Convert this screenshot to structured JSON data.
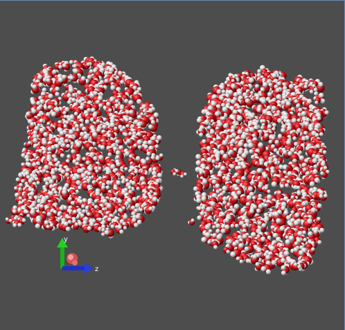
{
  "viewport": {
    "background": "#4d4d4d",
    "border_color": "#6a8bb4"
  },
  "molecule_colors": {
    "oxygen": "#c0141c",
    "oxygen_highlight": "#ff6060",
    "oxygen_shadow": "#5a0206",
    "hydrogen": "#d8d8d8",
    "hydrogen_shadow": "#707070"
  },
  "axes": {
    "y_label": "y",
    "z_label": "z",
    "y_color": "#19b219",
    "z_color": "#1f2fcc",
    "x_color": "#d95050"
  }
}
